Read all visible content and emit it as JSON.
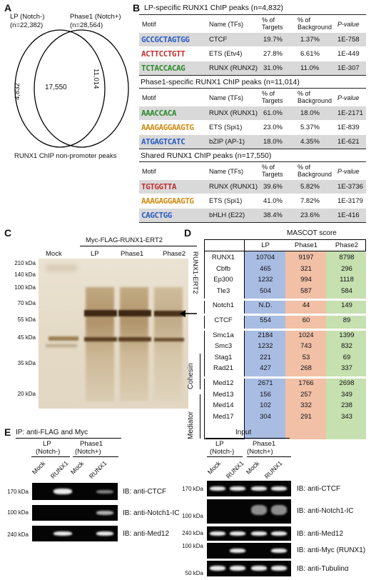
{
  "panelA": {
    "label": "A",
    "lp": "LP (Notch-)",
    "lp_n": "(n=22,382)",
    "phase1": "Phase1 (Notch+)",
    "phase1_n": "(n=28,564)",
    "left_only": "4,832",
    "shared": "17,550",
    "right_only": "11,014",
    "caption": "RUNX1 ChIP non-promoter peaks"
  },
  "panelB": {
    "label": "B",
    "headers": {
      "motif": "Motif",
      "name": "Name (TFs)",
      "targets": "% of Targets",
      "background": "% of Background",
      "pvalue": "P-value"
    },
    "sections": [
      {
        "title": "LP-specific RUNX1 ChIP peaks (n=4,832)",
        "rows": [
          {
            "logo": "GCCGCTAGTGG",
            "name": "CTCF",
            "targets": "19.7%",
            "background": "1.37%",
            "pvalue": "1E-758"
          },
          {
            "logo": "ACTTCCTGTT",
            "name": "ETS (Etv4)",
            "targets": "27.8%",
            "background": "6.61%",
            "pvalue": "1E-449"
          },
          {
            "logo": "TCTACCACAG",
            "name": "RUNX (RUNX2)",
            "targets": "31.0%",
            "background": "11.0%",
            "pvalue": "1E-307"
          }
        ]
      },
      {
        "title": "Phase1-specific RUNX1 ChIP peaks (n=11,014)",
        "rows": [
          {
            "logo": "AAACCACA",
            "name": "RUNX (RUNX1)",
            "targets": "61.0%",
            "background": "18.0%",
            "pvalue": "1E-2171"
          },
          {
            "logo": "AAAGAGGAAGTG",
            "name": "ETS (Spi1)",
            "targets": "23.0%",
            "background": "5.37%",
            "pvalue": "1E-839"
          },
          {
            "logo": "ATGAGTCATC",
            "name": "bZIP (AP-1)",
            "targets": "18.0%",
            "background": "4.35%",
            "pvalue": "1E-621"
          }
        ]
      },
      {
        "title": "Shared RUNX1 ChIP peaks (n=17,550)",
        "rows": [
          {
            "logo": "TGTGGTTA",
            "name": "RUNX (RUNX1)",
            "targets": "39.6%",
            "background": "5.82%",
            "pvalue": "1E-3736"
          },
          {
            "logo": "AAAGAGGAAGTG",
            "name": "ETS (Spi1)",
            "targets": "41.0%",
            "background": "7.82%",
            "pvalue": "1E-3179"
          },
          {
            "logo": "CAGCTGG",
            "name": "bHLH (E22)",
            "targets": "38.4%",
            "background": "23.6%",
            "pvalue": "1E-416"
          }
        ]
      }
    ]
  },
  "panelC": {
    "label": "C",
    "construct": "Myc-FLAG-RUNX1-ERT2",
    "lanes": [
      "Mock",
      "LP",
      "Phase1",
      "Phase2"
    ],
    "markers": [
      "210 kDa",
      "140 kDa",
      "100 kDa",
      "70 kDa",
      "55 kDa",
      "45 kDa",
      "35 kDa",
      "20 kDa"
    ],
    "arrow_label": "RUNX1-ERT2"
  },
  "panelD": {
    "label": "D",
    "title": "MASCOT score",
    "columns": [
      "LP",
      "Phase1",
      "Phase2"
    ],
    "groups": [
      {
        "label": "",
        "rows": [
          {
            "name": "RUNX1",
            "values": [
              "10704",
              "9197",
              "8798"
            ]
          },
          {
            "name": "Cbfb",
            "values": [
              "465",
              "321",
              "296"
            ]
          },
          {
            "name": "Ep300",
            "values": [
              "1232",
              "994",
              "1118"
            ]
          },
          {
            "name": "Tle3",
            "values": [
              "504",
              "587",
              "584"
            ]
          }
        ]
      },
      {
        "label": "",
        "rows": [
          {
            "name": "Notch1",
            "values": [
              "N.D.",
              "44",
              "149"
            ]
          }
        ]
      },
      {
        "label": "",
        "rows": [
          {
            "name": "CTCF",
            "values": [
              "554",
              "60",
              "89"
            ]
          }
        ]
      },
      {
        "label": "Cohesin",
        "rows": [
          {
            "name": "Smc1a",
            "values": [
              "2184",
              "1024",
              "1399"
            ]
          },
          {
            "name": "Smc3",
            "values": [
              "1232",
              "743",
              "832"
            ]
          },
          {
            "name": "Stag1",
            "values": [
              "221",
              "53",
              "69"
            ]
          },
          {
            "name": "Rad21",
            "values": [
              "427",
              "268",
              "337"
            ]
          }
        ]
      },
      {
        "label": "Mediator",
        "rows": [
          {
            "name": "Med12",
            "values": [
              "2671",
              "1766",
              "2698"
            ]
          },
          {
            "name": "Med13",
            "values": [
              "156",
              "257",
              "349"
            ]
          },
          {
            "name": "Med14",
            "values": [
              "102",
              "332",
              "238"
            ]
          },
          {
            "name": "Med17",
            "values": [
              "304",
              "291",
              "343"
            ]
          }
        ]
      }
    ],
    "colors": {
      "lp": "#a9bde3",
      "phase1": "#f2c0a6",
      "phase2": "#c6e0b0"
    }
  },
  "panelE": {
    "label": "E",
    "ip_title": "IP: anti-FLAG and Myc",
    "input_title": "Input",
    "lp": "LP",
    "lp_sub": "(Notch-)",
    "phase1": "Phase1",
    "phase1_sub": "(Notch+)",
    "lanes": [
      "Mock",
      "RUNX1",
      "Mock",
      "RUNX1"
    ],
    "ip_blots": [
      {
        "ib": "IB: anti-CTCF",
        "kda": "170 kDa"
      },
      {
        "ib": "IB: anti-Notch1-IC",
        "kda": "100 kDa"
      },
      {
        "ib": "IB: anti-Med12",
        "kda": "240 kDa"
      }
    ],
    "input_blots": [
      {
        "ib": "IB: anti-CTCF",
        "kda": "170 kDa"
      },
      {
        "ib": "IB: anti-Notch1-IC",
        "kda": "100 kDa"
      },
      {
        "ib": "IB: anti-Med12",
        "kda": "240 kDa"
      },
      {
        "ib": "IB: anti-Myc (RUNX1)",
        "kda": "100 kDa"
      },
      {
        "ib": "IB: anti-Tubulinα",
        "kda": "50 kDa"
      }
    ]
  }
}
